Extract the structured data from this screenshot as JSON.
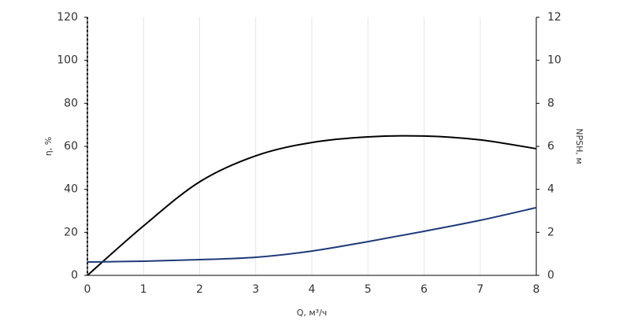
{
  "chart_data": {
    "type": "line",
    "xlabel": "Q, м³/ч",
    "ylabel": "η, %",
    "y2label": "NPSH, м",
    "x": [
      0,
      1,
      2,
      3,
      4,
      5,
      6,
      7,
      8
    ],
    "series": [
      {
        "color": "#000000",
        "values": [
          0,
          23,
          43.5,
          55.6,
          61.8,
          64.4,
          64.8,
          63,
          58.9
        ]
      },
      {
        "color": "#1f3a7a",
        "axis": "y2",
        "values": [
          0.62,
          0.66,
          0.73,
          0.84,
          1.13,
          1.57,
          2.05,
          2.56,
          3.15
        ]
      }
    ],
    "xlim": [
      0,
      8
    ],
    "xticks": [
      0,
      1,
      2,
      3,
      4,
      5,
      6,
      7,
      8
    ],
    "ylim": [
      0,
      120
    ],
    "yticks": [
      0,
      20,
      40,
      60,
      80,
      100,
      120
    ],
    "y2lim": [
      0,
      12
    ],
    "y2ticks": [
      0,
      2,
      4,
      6,
      8,
      10,
      12
    ],
    "grid": true
  }
}
